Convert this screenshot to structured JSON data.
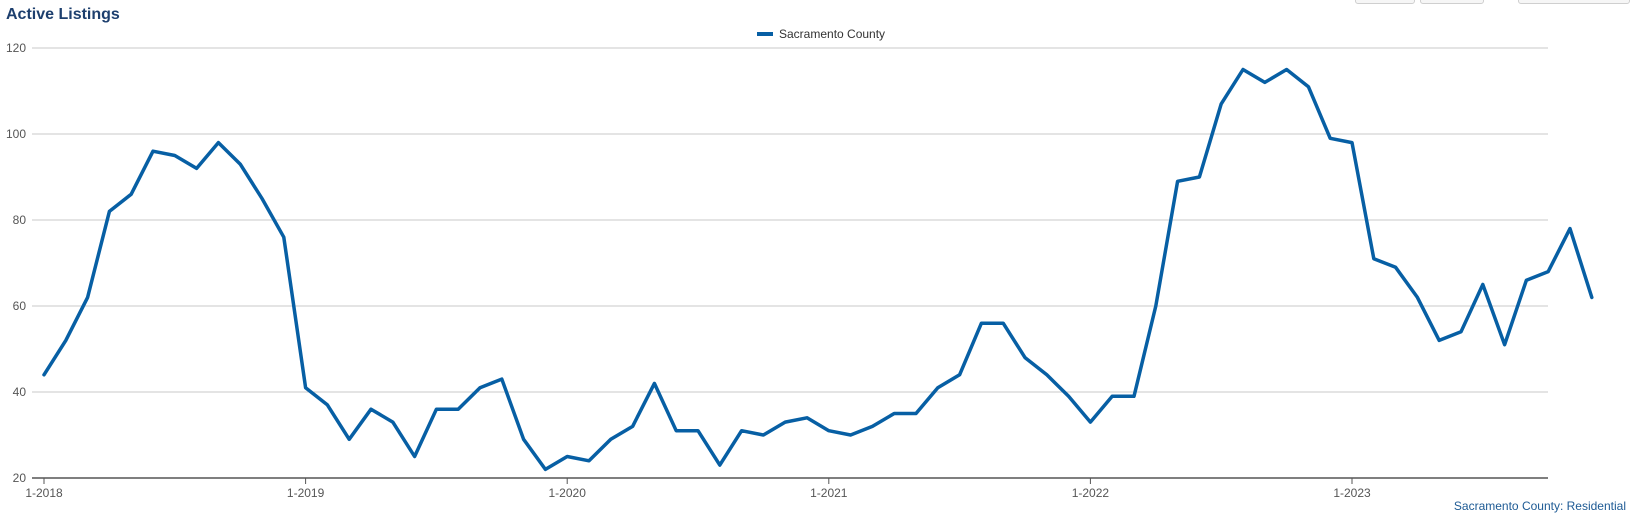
{
  "title": "Active Listings",
  "source_note": "Sacramento County: Residential",
  "colors": {
    "series": "#075fa4",
    "title": "#1d3f6e",
    "grid": "#c8c8c8",
    "axis": "#555555"
  },
  "chart_data": {
    "type": "line",
    "title": "Active Listings",
    "xlabel": "",
    "ylabel": "",
    "ylim": [
      20,
      120
    ],
    "yticks": [
      20,
      40,
      60,
      80,
      100,
      120
    ],
    "x_ticks": [
      "1-2018",
      "1-2019",
      "1-2020",
      "1-2021",
      "1-2022",
      "1-2023"
    ],
    "grid": true,
    "legend_position": "top-center",
    "x": [
      "1-2018",
      "2-2018",
      "3-2018",
      "4-2018",
      "5-2018",
      "6-2018",
      "7-2018",
      "8-2018",
      "9-2018",
      "10-2018",
      "11-2018",
      "12-2018",
      "1-2019",
      "2-2019",
      "3-2019",
      "4-2019",
      "5-2019",
      "6-2019",
      "7-2019",
      "8-2019",
      "9-2019",
      "10-2019",
      "11-2019",
      "12-2019",
      "1-2020",
      "2-2020",
      "3-2020",
      "4-2020",
      "5-2020",
      "6-2020",
      "7-2020",
      "8-2020",
      "9-2020",
      "10-2020",
      "11-2020",
      "12-2020",
      "1-2021",
      "2-2021",
      "3-2021",
      "4-2021",
      "5-2021",
      "6-2021",
      "7-2021",
      "8-2021",
      "9-2021",
      "10-2021",
      "11-2021",
      "12-2021",
      "1-2022",
      "2-2022",
      "3-2022",
      "4-2022",
      "5-2022",
      "6-2022",
      "7-2022",
      "8-2022",
      "9-2022",
      "10-2022",
      "11-2022",
      "12-2022",
      "1-2023",
      "2-2023",
      "3-2023",
      "4-2023",
      "5-2023",
      "6-2023",
      "7-2023",
      "8-2023",
      "9-2023",
      "10-2023",
      "11-2023",
      "12-2023"
    ],
    "series": [
      {
        "name": "Sacramento County",
        "values": [
          44,
          52,
          62,
          82,
          86,
          96,
          95,
          92,
          98,
          93,
          85,
          76,
          41,
          37,
          29,
          36,
          33,
          25,
          36,
          36,
          41,
          43,
          29,
          22,
          25,
          24,
          29,
          32,
          42,
          31,
          31,
          23,
          31,
          30,
          33,
          34,
          31,
          30,
          32,
          35,
          35,
          41,
          44,
          56,
          56,
          48,
          44,
          39,
          33,
          39,
          39,
          60,
          89,
          90,
          107,
          115,
          112,
          115,
          111,
          99,
          98,
          71,
          69,
          62,
          52,
          54,
          65,
          51,
          66,
          68,
          78,
          62
        ]
      }
    ]
  }
}
